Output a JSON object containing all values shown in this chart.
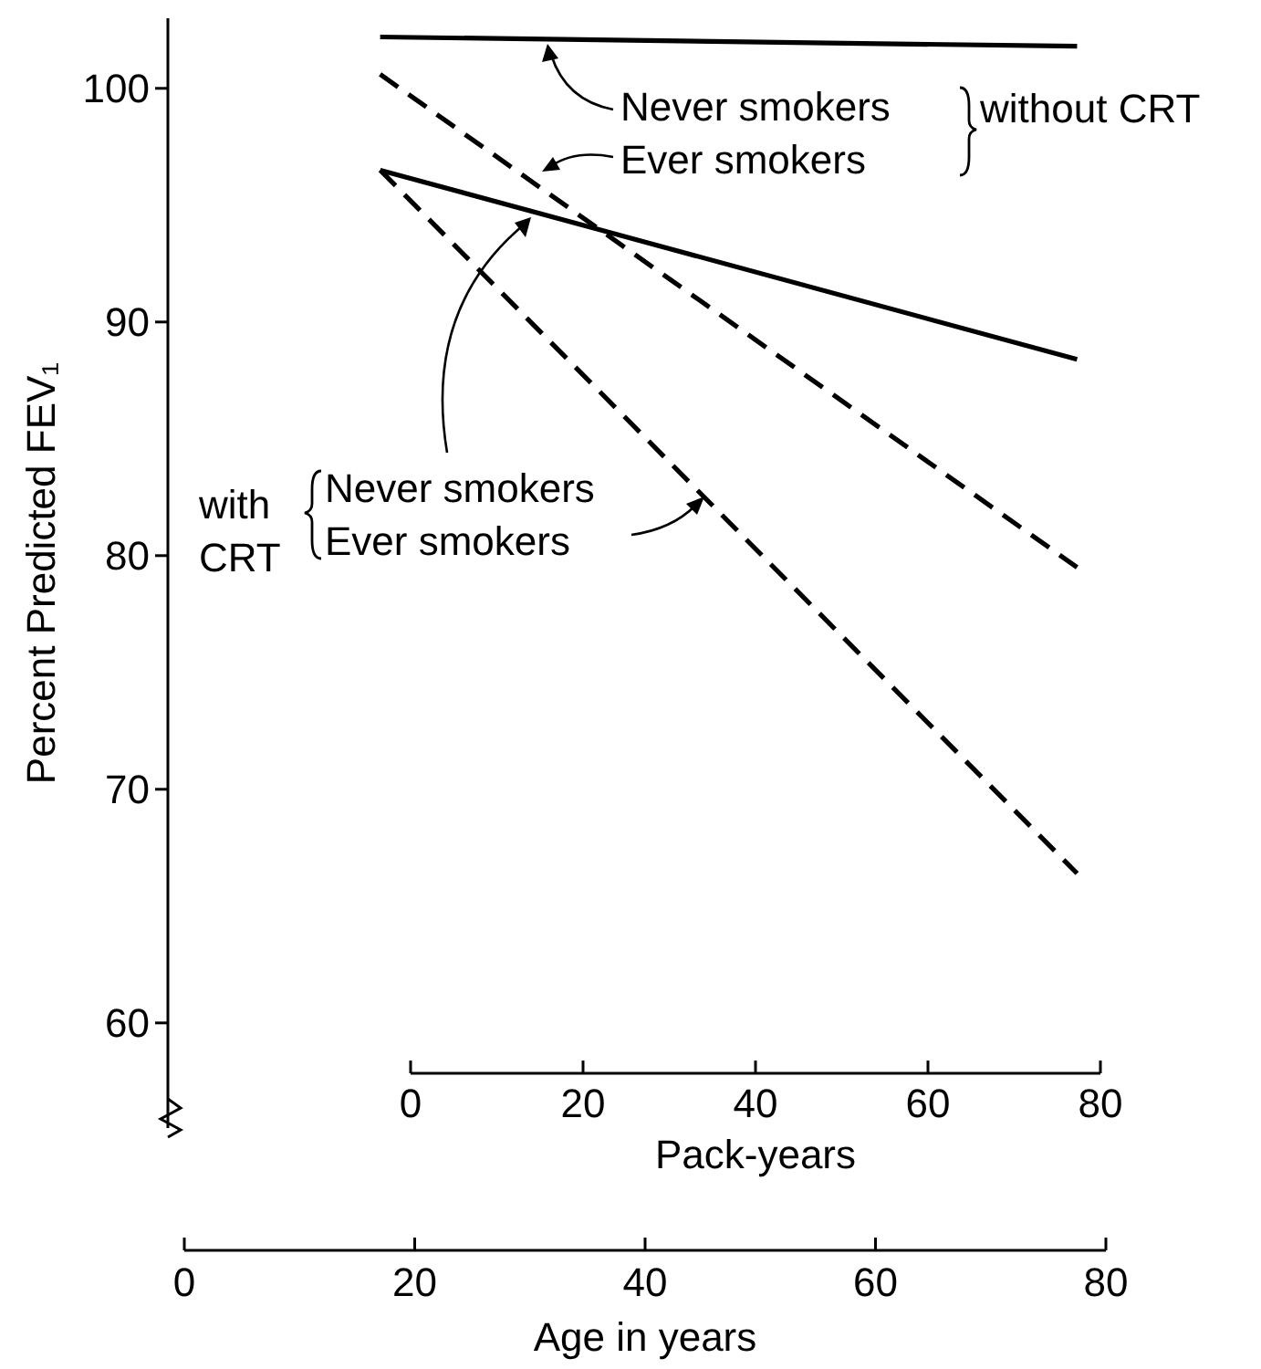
{
  "chart_data": {
    "type": "line",
    "ylabel": "Percent Predicted FEV₁",
    "xlabel": "Age in years",
    "x2label": "Pack-years",
    "xlim": [
      0,
      80
    ],
    "xticks": [
      0,
      20,
      40,
      60,
      80
    ],
    "x2lim": [
      0,
      80
    ],
    "x2ticks": [
      0,
      20,
      40,
      60,
      80
    ],
    "ylim": [
      55.5,
      103
    ],
    "yticks": [
      60,
      70,
      80,
      90,
      100
    ],
    "grid": false,
    "marker": "none",
    "x": [
      17,
      77.5
    ],
    "series": [
      {
        "values": [
          102.2,
          101.8
        ],
        "color": "#000000",
        "line_style": "solid"
      },
      {
        "values": [
          100.6,
          79.5
        ],
        "color": "#000000",
        "line_style": "dashed"
      },
      {
        "values": [
          96.5,
          88.4
        ],
        "color": "#000000",
        "line_style": "solid"
      },
      {
        "values": [
          96.5,
          66.4
        ],
        "color": "#000000",
        "line_style": "dashed"
      }
    ],
    "annotations": [
      "Never smokers",
      "Ever smokers",
      "without CRT",
      "with",
      "CRT",
      "Never smokers",
      "Ever smokers"
    ]
  }
}
